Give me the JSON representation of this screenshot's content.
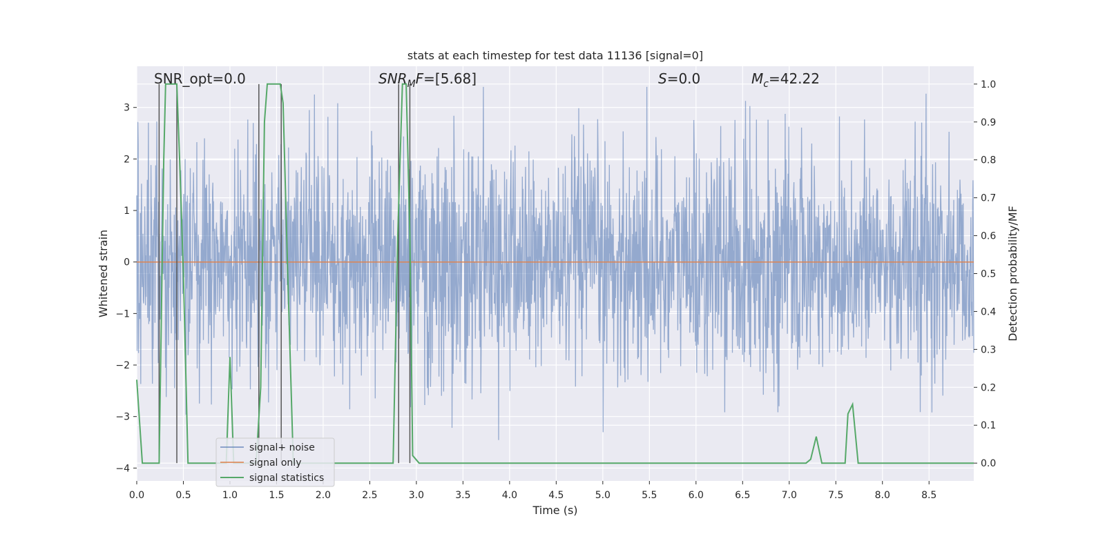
{
  "chart_data": {
    "type": "line",
    "title": "stats at each timestep for test data 11136 [signal=0]",
    "xlabel": "Time (s)",
    "ylabel_left": "Whitened strain",
    "ylabel_right": "Detection probability/MF",
    "xlim": [
      0.0,
      8.98
    ],
    "ylim_left": [
      -4.25,
      3.8
    ],
    "ylim_right": [
      -0.047,
      1.047
    ],
    "x_ticks": [
      "0.0",
      "0.5",
      "1.0",
      "1.5",
      "2.0",
      "2.5",
      "3.0",
      "3.5",
      "4.0",
      "4.5",
      "5.0",
      "5.5",
      "6.0",
      "6.5",
      "7.0",
      "7.5",
      "8.0",
      "8.5"
    ],
    "y_left_ticks": [
      "3",
      "2",
      "1",
      "0",
      "−1",
      "−2",
      "−3",
      "−4"
    ],
    "y_right_ticks": [
      "1.0",
      "0.9",
      "0.8",
      "0.7",
      "0.6",
      "0.5",
      "0.4",
      "0.3",
      "0.2",
      "0.1",
      "0.0"
    ],
    "annotations": {
      "snr_opt": "SNR_opt=0.0",
      "snr_mf": "=[5.68]",
      "s_stat": "=0.0",
      "mc": "=42.22"
    },
    "legend": {
      "placement": "lower-left",
      "entries": [
        "signal+ noise",
        "signal only",
        "signal statistics"
      ]
    },
    "series": [
      {
        "name": "signal+ noise",
        "color": "#4c72b0",
        "description_stats": {
          "t_start": 0.0,
          "t_end": 8.98,
          "n_points": 2300,
          "typical_amplitude": 1.0,
          "max": 3.4,
          "min": -4.0
        }
      },
      {
        "name": "signal only",
        "color": "#dd8452",
        "x": [
          0.0,
          8.98
        ],
        "y": [
          0.0,
          0.0
        ]
      },
      {
        "name": "signal statistics",
        "color": "#55a868",
        "axis": "right",
        "x": [
          0.0,
          0.06,
          0.24,
          0.29,
          0.31,
          0.43,
          0.46,
          0.5,
          0.55,
          0.96,
          1.0,
          1.04,
          1.08,
          1.28,
          1.33,
          1.37,
          1.4,
          1.54,
          1.57,
          1.62,
          1.68,
          2.75,
          2.8,
          2.85,
          2.89,
          2.93,
          2.96,
          3.03,
          3.08,
          7.18,
          7.23,
          7.29,
          7.35,
          7.6,
          7.63,
          7.68,
          7.74,
          7.78,
          8.98
        ],
        "y": [
          0.22,
          0.0,
          0.0,
          0.8,
          1.0,
          1.0,
          0.8,
          0.5,
          0.0,
          0.0,
          0.28,
          0.0,
          0.0,
          0.0,
          0.2,
          0.9,
          1.0,
          1.0,
          0.95,
          0.5,
          0.0,
          0.0,
          0.6,
          1.0,
          1.0,
          0.6,
          0.02,
          0.0,
          0.0,
          0.0,
          0.01,
          0.07,
          0.0,
          0.0,
          0.13,
          0.155,
          0.0,
          0.0,
          0.0
        ]
      }
    ],
    "event_markers": {
      "color": "#555555",
      "x": [
        0.24,
        0.43,
        1.31,
        1.55,
        2.81,
        2.93
      ]
    }
  }
}
